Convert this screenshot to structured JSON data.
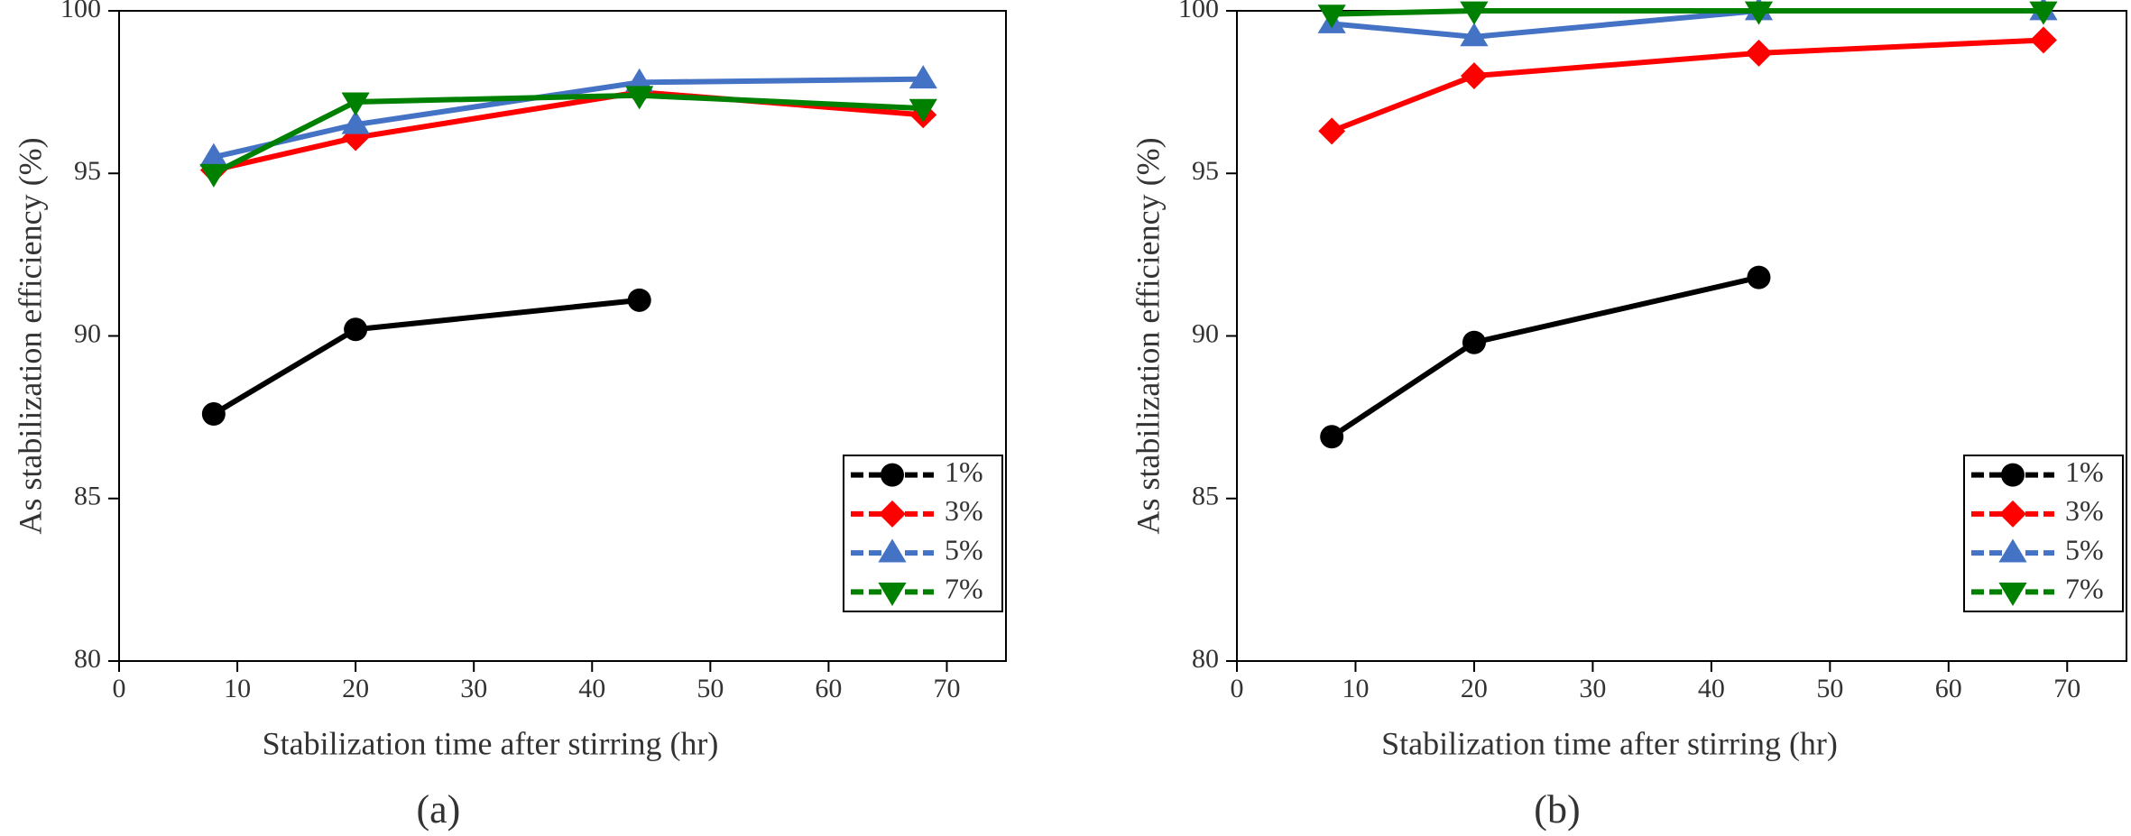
{
  "chart_data": [
    {
      "type": "line",
      "caption": "(a)",
      "xlabel": "Stabilization time after stirring (hr)",
      "ylabel": "As stabilization efficiency (%)",
      "x": [
        8,
        20,
        44,
        68
      ],
      "xlim": [
        0,
        75
      ],
      "xticks": [
        0,
        10,
        20,
        30,
        40,
        50,
        60,
        70
      ],
      "ylim": [
        80,
        100
      ],
      "yticks": [
        80,
        85,
        90,
        95,
        100
      ],
      "legend": "lower right",
      "series": [
        {
          "name": "1%",
          "color": "#000000",
          "marker": "circle",
          "values": [
            87.6,
            90.2,
            91.1,
            null
          ]
        },
        {
          "name": "3%",
          "color": "#ff0000",
          "marker": "diamond",
          "values": [
            95.1,
            96.1,
            97.5,
            96.8
          ]
        },
        {
          "name": "5%",
          "color": "#4472c4",
          "marker": "triangle-up",
          "values": [
            95.5,
            96.5,
            97.8,
            97.9
          ]
        },
        {
          "name": "7%",
          "color": "#008000",
          "marker": "triangle-down",
          "values": [
            95.0,
            97.2,
            97.4,
            97.0
          ]
        }
      ]
    },
    {
      "type": "line",
      "caption": "(b)",
      "xlabel": "Stabilization time after stirring (hr)",
      "ylabel": "As stabilization efficiency (%)",
      "x": [
        8,
        20,
        44,
        68
      ],
      "xlim": [
        0,
        75
      ],
      "xticks": [
        0,
        10,
        20,
        30,
        40,
        50,
        60,
        70
      ],
      "ylim": [
        80,
        100
      ],
      "yticks": [
        80,
        85,
        90,
        95,
        100
      ],
      "legend": "lower right",
      "series": [
        {
          "name": "1%",
          "color": "#000000",
          "marker": "circle",
          "values": [
            86.9,
            89.8,
            91.8,
            null
          ]
        },
        {
          "name": "3%",
          "color": "#ff0000",
          "marker": "diamond",
          "values": [
            96.3,
            98.0,
            98.7,
            99.1
          ]
        },
        {
          "name": "5%",
          "color": "#4472c4",
          "marker": "triangle-up",
          "values": [
            99.6,
            99.2,
            100.0,
            100.0
          ]
        },
        {
          "name": "7%",
          "color": "#008000",
          "marker": "triangle-down",
          "values": [
            99.9,
            100.0,
            100.0,
            100.0
          ]
        }
      ]
    }
  ]
}
